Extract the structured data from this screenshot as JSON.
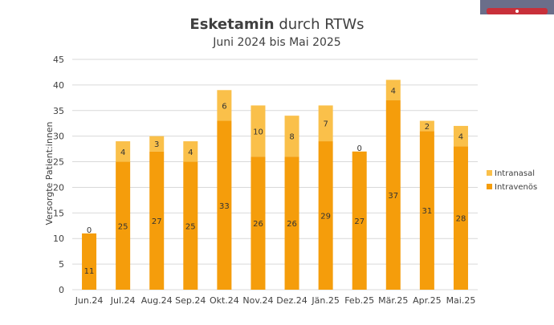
{
  "header": {
    "title_bold": "Esketamin",
    "title_rest": " durch RTWs",
    "subtitle": "Juni 2024 bis Mai 2025"
  },
  "colors": {
    "intranasal": "#fac04a",
    "intravenos": "#f59d0b",
    "grid": "#d9d9d9",
    "text": "#404040"
  },
  "chart_data": {
    "type": "bar",
    "stacked": true,
    "title": "Esketamin durch RTWs",
    "subtitle": "Juni 2024 bis Mai 2025",
    "xlabel": "",
    "ylabel": "Versorgte Patient:innen",
    "ylim": [
      0,
      45
    ],
    "yticks": [
      0,
      5,
      10,
      15,
      20,
      25,
      30,
      35,
      40,
      45
    ],
    "grid": true,
    "legend_position": "right",
    "categories": [
      "Jun.24",
      "Jul.24",
      "Aug.24",
      "Sep.24",
      "Okt.24",
      "Nov.24",
      "Dez.24",
      "Jän.25",
      "Feb.25",
      "Mär.25",
      "Apr.25",
      "Mai.25"
    ],
    "series": [
      {
        "name": "Intravenös",
        "values": [
          11,
          25,
          27,
          25,
          33,
          26,
          26,
          29,
          27,
          37,
          31,
          28
        ]
      },
      {
        "name": "Intranasal",
        "values": [
          0,
          4,
          3,
          4,
          6,
          10,
          8,
          7,
          0,
          4,
          2,
          4
        ]
      }
    ]
  }
}
